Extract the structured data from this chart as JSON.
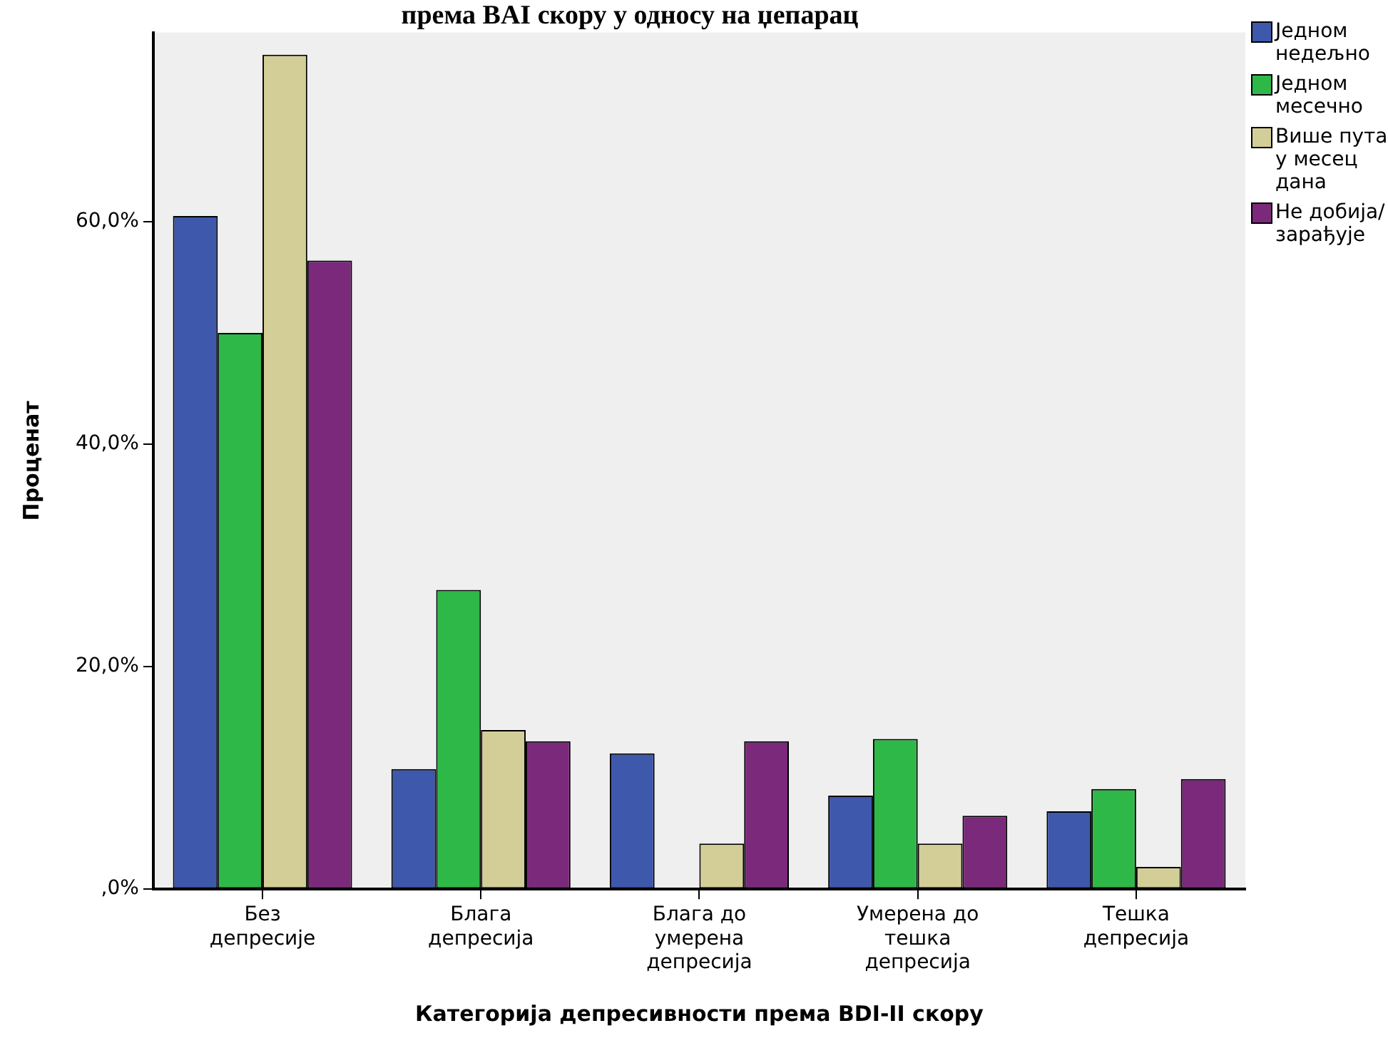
{
  "chart_data": {
    "type": "bar",
    "title": "према BAI скору у односу на џепарац",
    "xlabel": "Категорија депресивности према BDI-II скору",
    "ylabel": "Проценат",
    "categories": [
      "Без депресије",
      "Блага депресија",
      "Блага до умерена депресија",
      "Умерена до тешка депресија",
      "Тешка депресија"
    ],
    "series": [
      {
        "name": "Једном недељно",
        "color": "#3e58ac",
        "values": [
          60.5,
          10.8,
          12.2,
          8.4,
          7.0
        ]
      },
      {
        "name": "Једном месечно",
        "color": "#2eb848",
        "values": [
          50.0,
          26.9,
          0,
          13.5,
          9.0
        ]
      },
      {
        "name": "Више пута у месец дана",
        "color": "#d3ce97",
        "values": [
          75.0,
          14.3,
          4.1,
          4.1,
          2.0
        ]
      },
      {
        "name": "Не добија/зарађује",
        "color": "#7b2a7b",
        "values": [
          56.5,
          13.3,
          13.3,
          6.6,
          9.9
        ]
      }
    ],
    "ylim": [
      0,
      77
    ],
    "yticks": [
      {
        "value": 0,
        "label": ",0%"
      },
      {
        "value": 20,
        "label": "20,0%"
      },
      {
        "value": 40,
        "label": "40,0%"
      },
      {
        "value": 60,
        "label": "60,0%"
      }
    ],
    "legend": "right"
  }
}
